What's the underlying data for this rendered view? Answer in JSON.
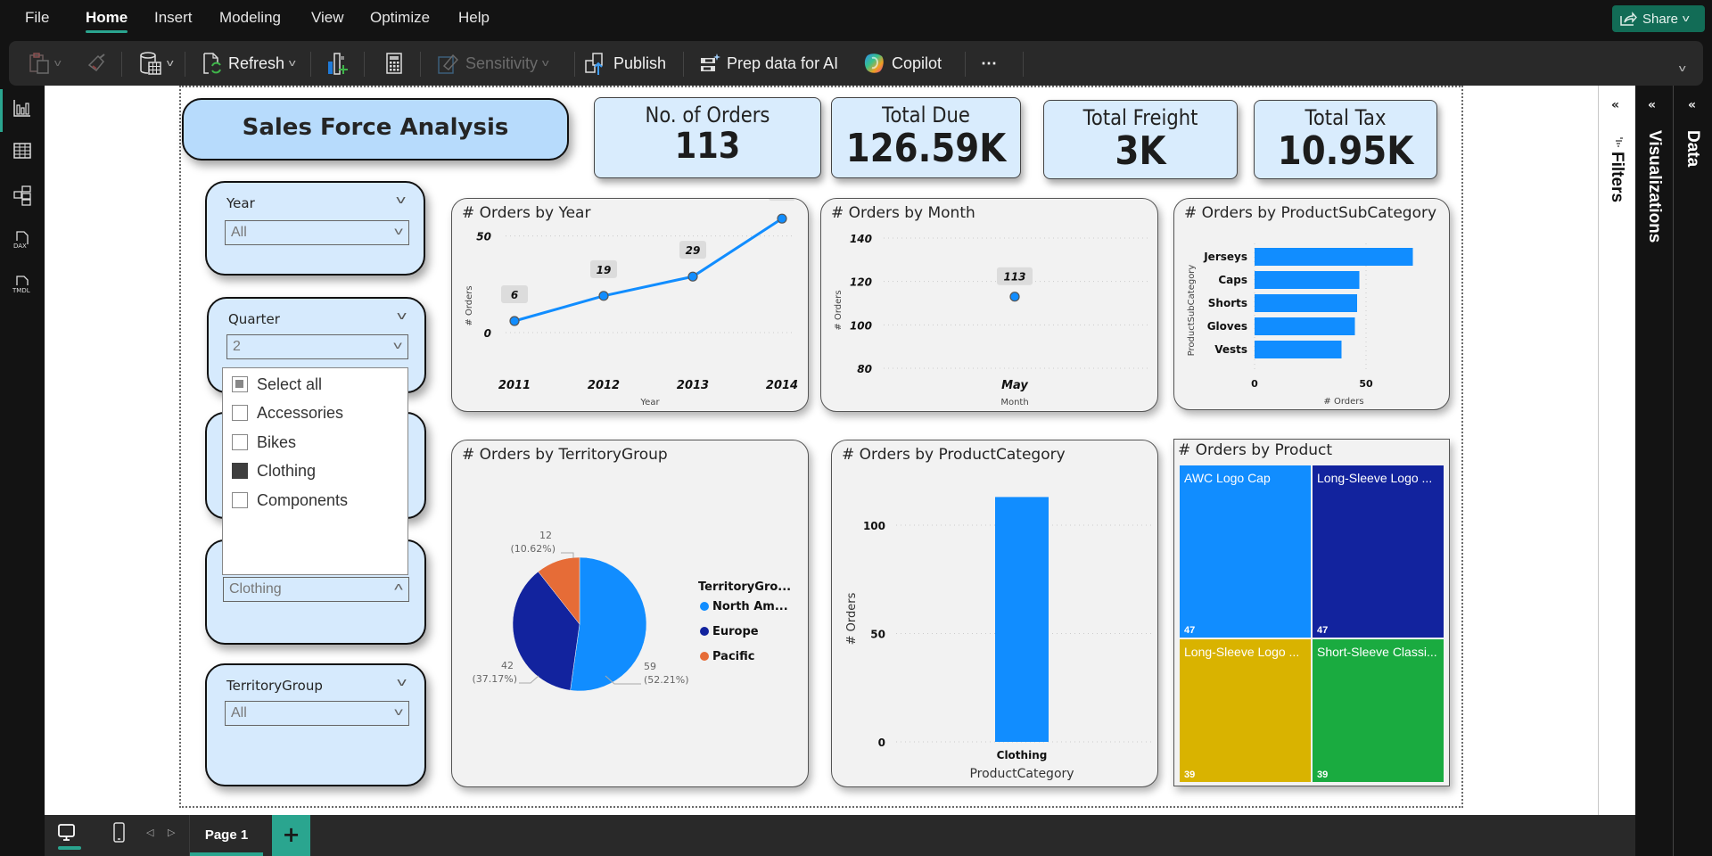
{
  "menu": {
    "items": [
      "File",
      "Home",
      "Insert",
      "Modeling",
      "View",
      "Optimize",
      "Help"
    ],
    "active": "Home",
    "share_label": "Share"
  },
  "toolbar": {
    "paste_icon": "clipboard-icon",
    "format_painter_icon": "paintbrush-icon",
    "get_data_icon": "database-table-icon",
    "refresh_label": "Refresh",
    "new_visual_icon": "chart-add-icon",
    "calculator_icon": "calculator-icon",
    "sensitivity_label": "Sensitivity",
    "publish_label": "Publish",
    "prep_ai_label": "Prep data for AI",
    "copilot_label": "Copilot",
    "more_label": "⋯"
  },
  "left_rail": {
    "items": [
      {
        "name": "report-view",
        "icon": "bar-chart-icon"
      },
      {
        "name": "table-view",
        "icon": "grid-icon"
      },
      {
        "name": "model-view",
        "icon": "model-icon"
      },
      {
        "name": "dax-query-view",
        "icon": "dax-icon",
        "label": "DAX"
      },
      {
        "name": "tmdl-view",
        "icon": "tmdl-icon",
        "label": "TMDL"
      }
    ]
  },
  "right_panes": {
    "filters_label": "Filters",
    "visualizations_label": "Visualizations",
    "data_label": "Data"
  },
  "report": {
    "title": "Sales Force Analysis",
    "kpis": [
      {
        "label": "No. of Orders",
        "value": "113"
      },
      {
        "label": "Total Due",
        "value": "126.59K"
      },
      {
        "label": "Total Freight",
        "value": "3K"
      },
      {
        "label": "Total Tax",
        "value": "10.95K"
      }
    ],
    "slicers": {
      "year": {
        "title": "Year",
        "value": "All"
      },
      "quarter": {
        "title": "Quarter",
        "value": "2"
      },
      "category": {
        "value": "Clothing"
      },
      "territory": {
        "title": "TerritoryGroup",
        "value": "All"
      }
    },
    "dropdown": {
      "items": [
        {
          "label": "Select all",
          "state": "partial"
        },
        {
          "label": "Accessories",
          "state": "unchecked"
        },
        {
          "label": "Bikes",
          "state": "unchecked"
        },
        {
          "label": "Clothing",
          "state": "checked"
        },
        {
          "label": "Components",
          "state": "unchecked"
        }
      ]
    }
  },
  "chart_data": [
    {
      "id": "orders_by_year",
      "type": "line",
      "title": "# Orders by Year",
      "xlabel": "Year",
      "ylabel": "# Orders",
      "categories": [
        "2011",
        "2012",
        "2013",
        "2014"
      ],
      "values": [
        6,
        19,
        29,
        59
      ],
      "yticks": [
        0,
        50
      ],
      "ylim": [
        0,
        60
      ],
      "color": "#118dff",
      "grid": true
    },
    {
      "id": "orders_by_month",
      "type": "line",
      "title": "# Orders by Month",
      "xlabel": "Month",
      "ylabel": "# Orders",
      "categories": [
        "May"
      ],
      "values": [
        113
      ],
      "yticks": [
        80,
        100,
        120,
        140
      ],
      "ylim": [
        80,
        140
      ],
      "color": "#118dff",
      "grid": true
    },
    {
      "id": "orders_by_subcategory",
      "type": "bar",
      "orientation": "horizontal",
      "title": "# Orders by ProductSubCategory",
      "xlabel": "# Orders",
      "ylabel": "ProductSubCategory",
      "categories": [
        "Jerseys",
        "Caps",
        "Shorts",
        "Gloves",
        "Vests"
      ],
      "values": [
        71,
        47,
        46,
        45,
        39
      ],
      "xticks": [
        0,
        50
      ],
      "xlim": [
        0,
        80
      ],
      "color": "#118dff"
    },
    {
      "id": "orders_by_territory",
      "type": "pie",
      "title": "# Orders by TerritoryGroup",
      "legend_title": "TerritoryGro...",
      "legend_position": "right",
      "slices": [
        {
          "label": "North Am...",
          "value": 59,
          "pct": "52.21%",
          "color": "#118dff"
        },
        {
          "label": "Europe",
          "value": 42,
          "pct": "37.17%",
          "color": "#12239e"
        },
        {
          "label": "Pacific",
          "value": 12,
          "pct": "10.62%",
          "color": "#e66c37"
        }
      ]
    },
    {
      "id": "orders_by_category",
      "type": "bar",
      "orientation": "vertical",
      "title": "# Orders by ProductCategory",
      "xlabel": "ProductCategory",
      "ylabel": "# Orders",
      "categories": [
        "Clothing"
      ],
      "values": [
        113
      ],
      "yticks": [
        0,
        50,
        100
      ],
      "ylim": [
        0,
        120
      ],
      "color": "#118dff"
    },
    {
      "id": "orders_by_product",
      "type": "treemap",
      "title": "# Orders by Product",
      "items": [
        {
          "label": "AWC Logo Cap",
          "value": 47,
          "color": "#118dff"
        },
        {
          "label": "Long-Sleeve Logo ...",
          "value": 47,
          "color": "#12239e"
        },
        {
          "label": "Long-Sleeve Logo ...",
          "value": 39,
          "color": "#d9b300"
        },
        {
          "label": "Short-Sleeve Classi...",
          "value": 39,
          "color": "#1aab40"
        }
      ]
    }
  ],
  "bottom": {
    "page_tab": "Page 1",
    "add_page": "+"
  }
}
